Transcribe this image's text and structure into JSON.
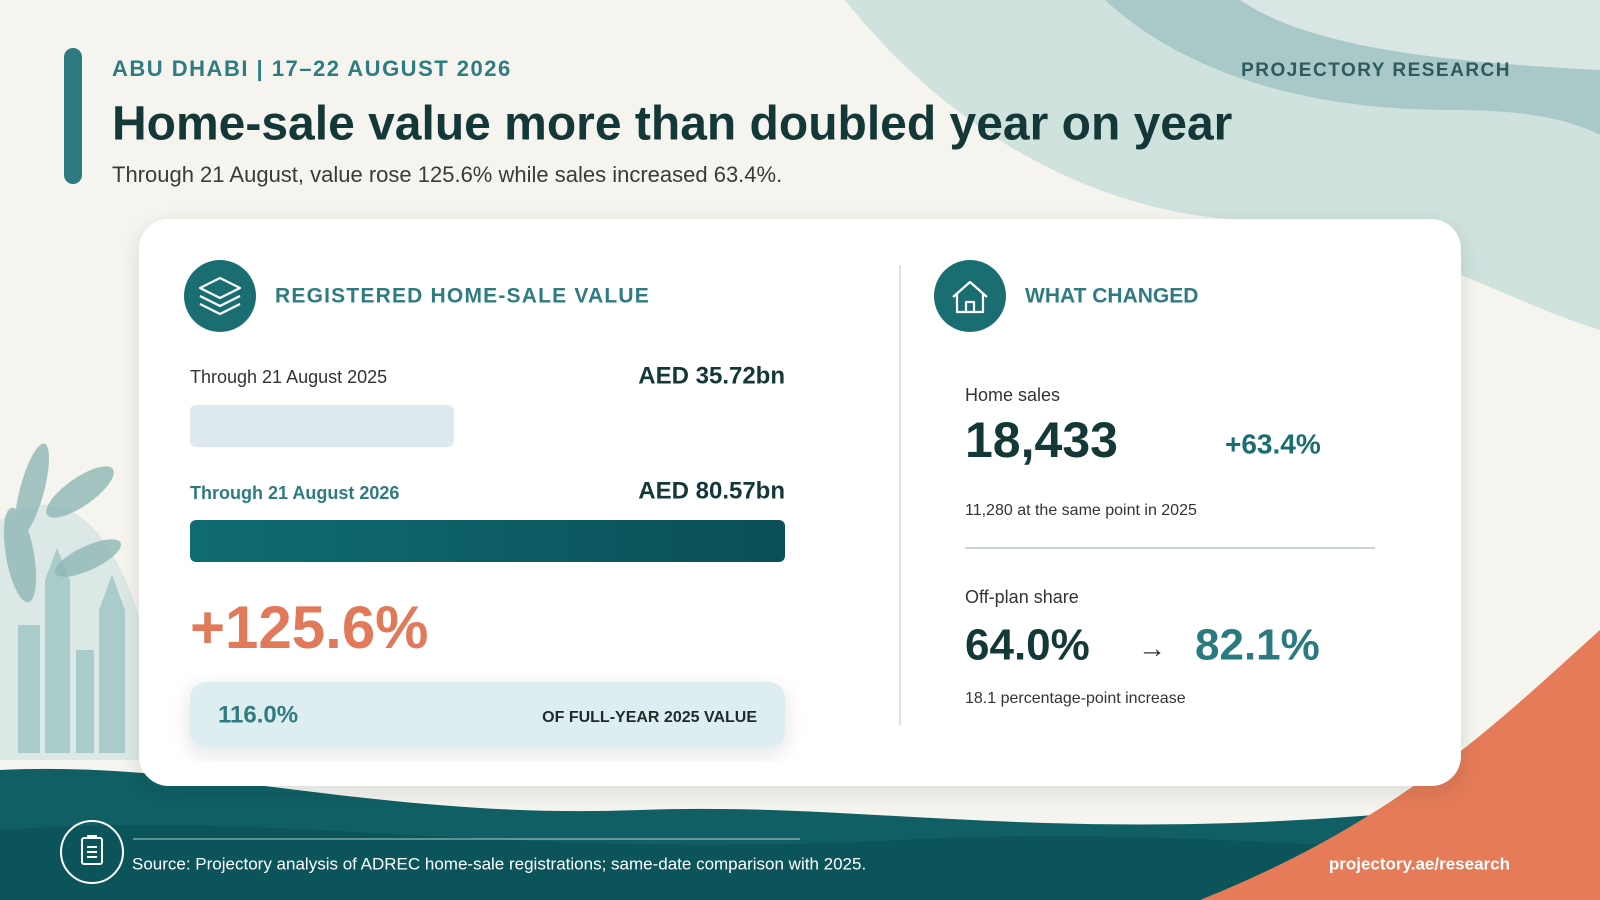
{
  "header": {
    "kicker": "ABU DHABI | 17–22 AUGUST 2026",
    "brand": "PROJECTORY RESEARCH",
    "title": "Home-sale value more than doubled year on year",
    "subtitle": "Through 21 August, value rose 125.6% while sales increased 63.4%."
  },
  "value_panel": {
    "heading": "REGISTERED HOME-SALE VALUE",
    "rows": [
      {
        "label": "Through 21 August 2025",
        "value": 35.72,
        "value_label": "AED 35.72bn"
      },
      {
        "label": "Through 21 August 2026",
        "value": 80.57,
        "value_label": "AED 80.57bn"
      }
    ],
    "change": "+125.6%",
    "share": "116.0%",
    "share_label": "OF FULL-YEAR 2025 VALUE"
  },
  "changes_panel": {
    "heading": "WHAT CHANGED",
    "home_sales": {
      "label": "Home sales",
      "value": "18,433",
      "change": "+63.4%",
      "note": "11,280 at the same point in 2025"
    },
    "off_plan": {
      "label": "Off-plan share",
      "from": "64.0%",
      "arrow": "→",
      "to": "82.1%",
      "note": "18.1 percentage-point increase"
    }
  },
  "footer": {
    "source": "Source: Projectory analysis of ADREC home-sale registrations; same-date comparison with 2025.",
    "link": "projectory.ae/research"
  }
}
